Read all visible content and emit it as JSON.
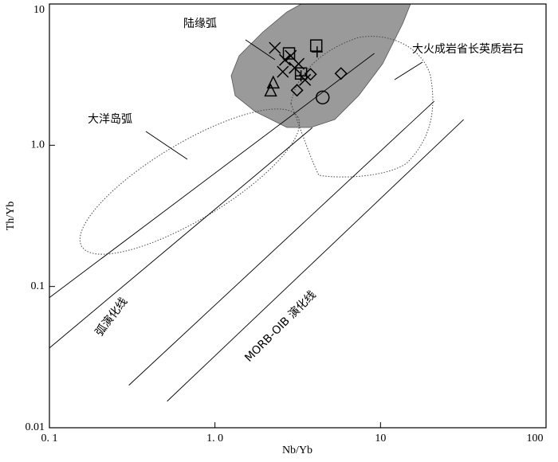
{
  "chart_data": {
    "type": "scatter",
    "x_label": "Nb/Yb",
    "y_label": "Th/Yb",
    "log_x": true,
    "log_y": true,
    "xlim": [
      0.1,
      100
    ],
    "ylim": [
      0.01,
      10
    ],
    "xticks": [
      {
        "value": 0.1,
        "label": "0. 1"
      },
      {
        "value": 1,
        "label": "1. 0"
      },
      10,
      100
    ],
    "yticks": [
      0.01,
      0.1,
      {
        "value": 1,
        "label": "1.0"
      },
      10
    ],
    "annotations": [
      "陆缘弧",
      "大火成岩省长英质岩石",
      "大洋岛弧",
      "弧演化线",
      "MORB-OIB 演化线"
    ],
    "reference_lines": [
      {
        "x": [
          0.1,
          9.18
        ],
        "y": [
          0.0834,
          4.47
        ]
      },
      {
        "x": [
          0.1,
          3.87
        ],
        "y": [
          0.0367,
          1.33
        ]
      },
      {
        "x": [
          0.302,
          21.1
        ],
        "y": [
          0.02,
          2.05
        ]
      },
      {
        "x": [
          0.514,
          31.8
        ],
        "y": [
          0.0154,
          1.52
        ]
      }
    ],
    "series": [
      {
        "marker": "cross",
        "color": "#000000",
        "x": [
          2.3,
          2.65,
          3.03,
          2.57,
          2.87,
          3.2,
          3.5
        ],
        "values": [
          4.89,
          4.02,
          3.53,
          3.31,
          4.29,
          3.77,
          2.9
        ]
      },
      {
        "marker": "plus",
        "color": "#000000",
        "x": [
          4.14,
          3.31
        ],
        "values": [
          4.58,
          3.1
        ]
      },
      {
        "marker": "square",
        "color": "#000000",
        "x": [
          4.09,
          2.8,
          3.31
        ],
        "values": [
          5.08,
          4.47,
          3.22
        ]
      },
      {
        "marker": "triangle",
        "color": "#000000",
        "x": [
          2.17,
          2.25
        ],
        "values": [
          2.45,
          2.79
        ]
      },
      {
        "marker": "diamond",
        "color": "#000000",
        "x": [
          5.77,
          3.78,
          3.13
        ],
        "values": [
          3.22,
          3.18,
          2.45
        ]
      },
      {
        "marker": "circle",
        "color": "#000000",
        "x": [
          4.47
        ],
        "values": [
          2.18
        ]
      }
    ]
  }
}
